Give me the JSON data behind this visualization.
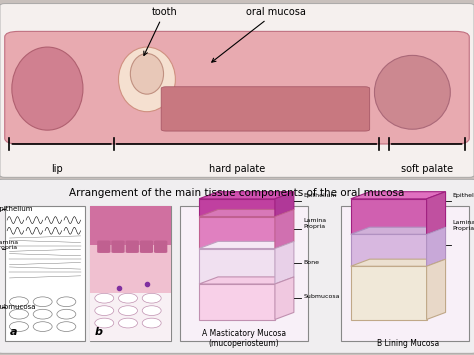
{
  "figsize": [
    4.74,
    3.55
  ],
  "dpi": 100,
  "bg_color_bottom": "#c8c0bc",
  "top_panel_bg": "#f5f0ee",
  "bottom_panel_bg": "#f0eef0",
  "title_bottom": "Arrangement of the main tissue components of the oral mucosa",
  "title_fontsize": 7.5,
  "masticatory_label": "A Masticatory Mucosa\n(mucoperiosteum)",
  "lining_label": "B Lining Mucosa"
}
